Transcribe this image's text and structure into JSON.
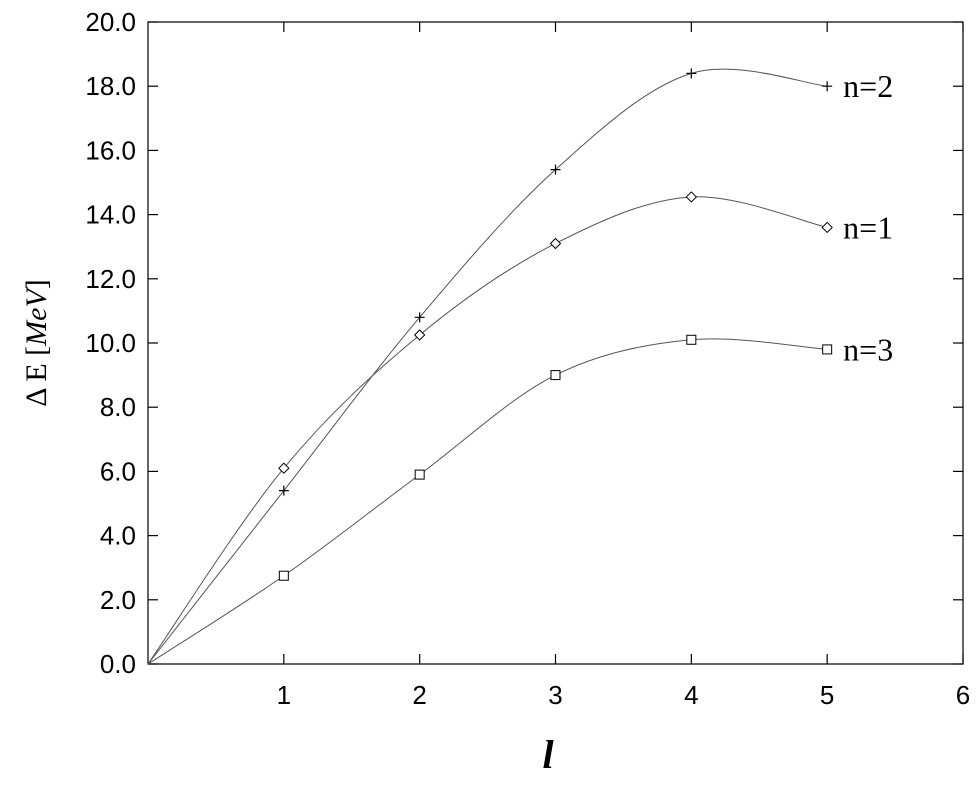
{
  "chart_data": {
    "type": "line",
    "title": "",
    "xlabel": "l",
    "ylabel": {
      "prefix": "Δ E [",
      "unit": "MeV",
      "suffix": "]"
    },
    "xlim": [
      0,
      6
    ],
    "ylim": [
      0,
      20
    ],
    "xticks": [
      1,
      2,
      3,
      4,
      5,
      6
    ],
    "yticks": [
      "0.0",
      "2.0",
      "4.0",
      "6.0",
      "8.0",
      "10.0",
      "12.0",
      "14.0",
      "16.0",
      "18.0",
      "20.0"
    ],
    "grid": false,
    "series": [
      {
        "name": "n=1",
        "marker": "diamond",
        "origin": [
          0,
          0
        ],
        "x": [
          1,
          2,
          3,
          4,
          5
        ],
        "values": [
          6.1,
          10.25,
          13.1,
          14.55,
          13.6
        ]
      },
      {
        "name": "n=2",
        "marker": "plus",
        "origin": [
          0,
          0
        ],
        "x": [
          1,
          2,
          3,
          4,
          5
        ],
        "values": [
          5.4,
          10.8,
          15.4,
          18.4,
          18.0
        ]
      },
      {
        "name": "n=3",
        "marker": "square",
        "origin": [
          0,
          0
        ],
        "x": [
          1,
          2,
          3,
          4,
          5
        ],
        "values": [
          2.75,
          5.9,
          9.0,
          10.1,
          9.8
        ]
      }
    ]
  }
}
